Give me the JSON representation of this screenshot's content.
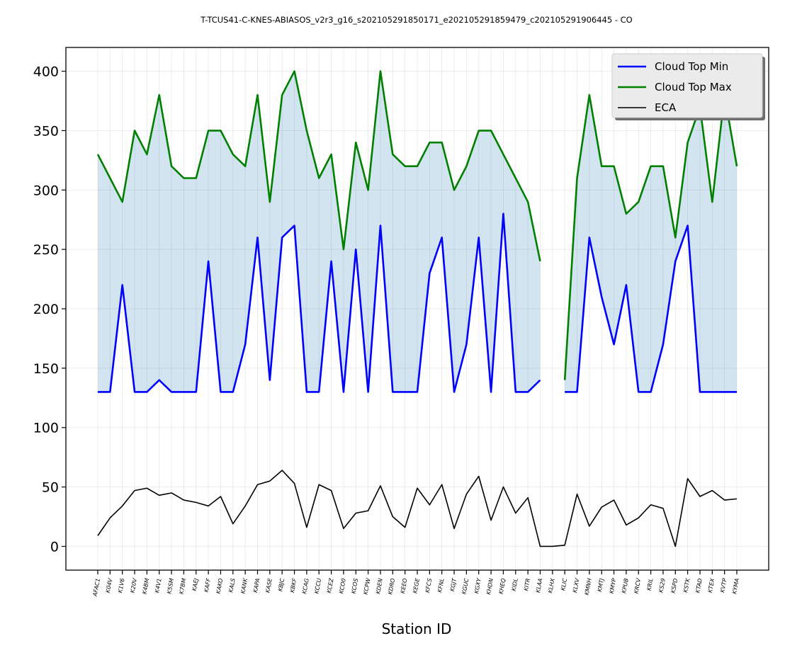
{
  "chart_data": {
    "type": "line",
    "title": "T-TCUS41-C-KNES-ABIASOS_v2r3_g16_s202105291850171_e202105291859479_c202105291906445 - CO",
    "xlabel": "Station ID",
    "ylabel": "",
    "ylim": [
      -20,
      420
    ],
    "yticks": [
      0,
      50,
      100,
      150,
      200,
      250,
      300,
      350,
      400
    ],
    "grid": true,
    "legend_position": "top-right",
    "categories": [
      "AFAC1",
      "K04V",
      "K1V6",
      "K20V",
      "K4BM",
      "K4V1",
      "K5SM",
      "K7BM",
      "KAEJ",
      "KAFF",
      "KAKO",
      "KALS",
      "KANK",
      "KAPA",
      "KASE",
      "KBJC",
      "KBKF",
      "KCAG",
      "KCCU",
      "KCEZ",
      "KCO0",
      "KCOS",
      "KCPW",
      "KDEN",
      "KDRO",
      "KEEO",
      "KEGE",
      "KFCS",
      "KFNL",
      "KGJT",
      "KGUC",
      "KGXY",
      "KHDN",
      "KHEQ",
      "KIDL",
      "KITR",
      "KLAA",
      "KLHX",
      "KLIC",
      "KLXV",
      "KMNH",
      "KMTJ",
      "KMYP",
      "KPUB",
      "KRCV",
      "KRIL",
      "KS29",
      "KSPD",
      "KSTK",
      "KTAD",
      "KTEX",
      "KVTP",
      "KYMA"
    ],
    "series": [
      {
        "name": "Cloud Top Min",
        "color": "#0000ff",
        "values": [
          130,
          130,
          220,
          130,
          130,
          140,
          130,
          130,
          130,
          240,
          130,
          130,
          170,
          260,
          140,
          260,
          270,
          130,
          130,
          240,
          130,
          250,
          130,
          270,
          130,
          130,
          130,
          230,
          260,
          130,
          170,
          260,
          130,
          280,
          130,
          130,
          140,
          null,
          130,
          130,
          260,
          210,
          170,
          220,
          130,
          130,
          170,
          240,
          270,
          130,
          130,
          130,
          130
        ]
      },
      {
        "name": "Cloud Top Max",
        "color": "#008000",
        "values": [
          330,
          310,
          290,
          350,
          330,
          380,
          320,
          310,
          310,
          350,
          350,
          330,
          320,
          380,
          290,
          380,
          400,
          350,
          310,
          330,
          250,
          340,
          300,
          400,
          330,
          320,
          320,
          340,
          340,
          300,
          320,
          350,
          350,
          330,
          310,
          290,
          240,
          null,
          140,
          310,
          380,
          320,
          320,
          280,
          290,
          320,
          320,
          260,
          340,
          370,
          290,
          380,
          320
        ]
      },
      {
        "name": "ECA",
        "color": "#000000",
        "values": [
          9,
          24,
          34,
          47,
          49,
          43,
          45,
          39,
          37,
          34,
          42,
          19,
          34,
          52,
          55,
          64,
          53,
          16,
          52,
          47,
          15,
          28,
          30,
          51,
          25,
          16,
          49,
          35,
          52,
          15,
          44,
          59,
          22,
          50,
          28,
          41,
          0,
          0,
          1,
          44,
          17,
          33,
          39,
          18,
          24,
          35,
          32,
          0,
          57,
          42,
          47,
          39,
          40
        ]
      }
    ],
    "fill_between": {
      "lower": "Cloud Top Min",
      "upper": "Cloud Top Max",
      "color": "#1f77b4",
      "opacity": 0.2
    }
  }
}
